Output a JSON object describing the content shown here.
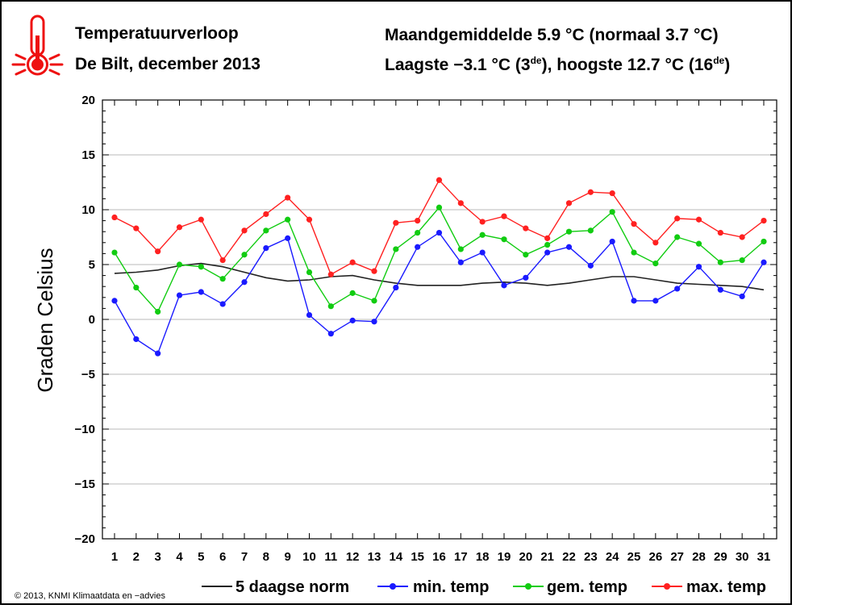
{
  "header": {
    "title": "Temperatuurverloop",
    "subtitle": "De Bilt, december 2013",
    "monthly_avg": "Maandgemiddelde 5.9 °C (normaal 3.7 °C)",
    "extremes_lowest": "Laagste −3.1 °C (3",
    "extremes_sup1": "de",
    "extremes_highest": "), hoogste 12.7 °C (16",
    "extremes_sup2": "de",
    "extremes_end": ")"
  },
  "footer": {
    "copyright": "© 2013, KNMI Klimaatdata en −advies"
  },
  "colors": {
    "norm": "#222222",
    "min": "#1a1aff",
    "mean": "#11cc11",
    "max": "#ff2020",
    "icon": "#ee1111"
  },
  "icons": {
    "thermometer": "thermometer-icon"
  },
  "chart_data": {
    "type": "line",
    "title": "Temperatuurverloop",
    "subtitle": "De Bilt, december 2013",
    "xlabel": "",
    "ylabel": "Graden Celsius",
    "ylim": [
      -20,
      20
    ],
    "yticks": [
      -20,
      -15,
      -10,
      -5,
      0,
      5,
      10,
      15,
      20
    ],
    "ytick_labels": [
      "−20",
      "−15",
      "−10",
      "−5",
      "0",
      "5",
      "10",
      "15",
      "20"
    ],
    "grid": true,
    "legend_position": "bottom",
    "categories": [
      "1",
      "2",
      "3",
      "4",
      "5",
      "6",
      "7",
      "8",
      "9",
      "10",
      "11",
      "12",
      "13",
      "14",
      "15",
      "16",
      "17",
      "18",
      "19",
      "20",
      "21",
      "22",
      "23",
      "24",
      "25",
      "26",
      "27",
      "28",
      "29",
      "30",
      "31"
    ],
    "series": [
      {
        "name": "5 daagse norm",
        "color": "#222222",
        "markers": false,
        "values": [
          4.2,
          4.3,
          4.5,
          4.9,
          5.1,
          4.8,
          4.3,
          3.8,
          3.5,
          3.6,
          3.9,
          4.0,
          3.6,
          3.3,
          3.1,
          3.1,
          3.1,
          3.3,
          3.4,
          3.3,
          3.1,
          3.3,
          3.6,
          3.9,
          3.9,
          3.6,
          3.3,
          3.2,
          3.1,
          3.0,
          2.7
        ]
      },
      {
        "name": "min. temp",
        "color": "#1a1aff",
        "markers": true,
        "values": [
          1.7,
          -1.8,
          -3.1,
          2.2,
          2.5,
          1.4,
          3.4,
          6.5,
          7.4,
          0.4,
          -1.3,
          -0.1,
          -0.2,
          2.9,
          6.6,
          7.9,
          5.2,
          6.1,
          3.1,
          3.8,
          6.1,
          6.6,
          4.9,
          7.1,
          1.7,
          1.7,
          2.8,
          4.8,
          2.7,
          2.1,
          5.2
        ]
      },
      {
        "name": "gem. temp",
        "color": "#11cc11",
        "markers": true,
        "values": [
          6.1,
          2.9,
          0.7,
          5.0,
          4.8,
          3.7,
          5.9,
          8.1,
          9.1,
          4.3,
          1.2,
          2.4,
          1.7,
          6.4,
          7.9,
          10.2,
          6.4,
          7.7,
          7.3,
          5.9,
          6.8,
          8.0,
          8.1,
          9.8,
          6.1,
          5.1,
          7.5,
          6.9,
          5.2,
          5.4,
          7.1
        ]
      },
      {
        "name": "max. temp",
        "color": "#ff2020",
        "markers": true,
        "values": [
          9.3,
          8.3,
          6.2,
          8.4,
          9.1,
          5.4,
          8.1,
          9.6,
          11.1,
          9.1,
          4.1,
          5.2,
          4.4,
          8.8,
          9.0,
          12.7,
          10.6,
          8.9,
          9.4,
          8.3,
          7.4,
          10.6,
          11.6,
          11.5,
          8.7,
          7.0,
          9.2,
          9.1,
          7.9,
          7.5,
          9.0
        ]
      }
    ]
  }
}
